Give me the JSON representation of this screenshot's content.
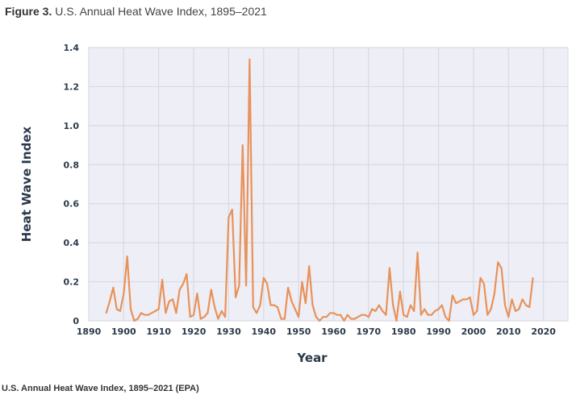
{
  "figure": {
    "label": "Figure 3.",
    "title": "U.S. Annual Heat Wave Index, 1895–2021",
    "caption": "U.S. Annual Heat Wave Index, 1895–2021 (EPA)"
  },
  "colors": {
    "line": "#e8925a",
    "plot_bg": "#eeeef6",
    "grid": "#d9d9e2",
    "text": "#2b3a4a"
  },
  "chart_data": {
    "type": "line",
    "title": "U.S. Annual Heat Wave Index, 1895–2021",
    "xlabel": "Year",
    "ylabel": "Heat Wave Index",
    "xlim": [
      1890,
      2027
    ],
    "ylim": [
      0,
      1.4
    ],
    "grid": true,
    "xticks": [
      "1890",
      "1900",
      "1910",
      "1920",
      "1930",
      "1940",
      "1950",
      "1960",
      "1970",
      "1980",
      "1990",
      "2000",
      "2010",
      "2020"
    ],
    "xtick_values": [
      1890,
      1900,
      1910,
      1920,
      1930,
      1940,
      1950,
      1960,
      1970,
      1980,
      1990,
      2000,
      2010,
      2020
    ],
    "yticks": [
      "0",
      "0.2",
      "0.4",
      "0.6",
      "0.8",
      "1.0",
      "1.2",
      "1.4"
    ],
    "ytick_values": [
      0,
      0.2,
      0.4,
      0.6,
      0.8,
      1.0,
      1.2,
      1.4
    ],
    "series": [
      {
        "name": "Heat Wave Index",
        "x_start": 1895,
        "values": [
          0.04,
          0.1,
          0.17,
          0.06,
          0.05,
          0.14,
          0.33,
          0.06,
          0.0,
          0.01,
          0.04,
          0.03,
          0.03,
          0.04,
          0.05,
          0.06,
          0.21,
          0.04,
          0.1,
          0.11,
          0.04,
          0.16,
          0.19,
          0.24,
          0.02,
          0.03,
          0.14,
          0.01,
          0.02,
          0.04,
          0.16,
          0.07,
          0.01,
          0.05,
          0.02,
          0.53,
          0.57,
          0.12,
          0.18,
          0.9,
          0.18,
          1.34,
          0.07,
          0.04,
          0.08,
          0.22,
          0.19,
          0.08,
          0.08,
          0.07,
          0.01,
          0.01,
          0.17,
          0.1,
          0.06,
          0.02,
          0.2,
          0.09,
          0.28,
          0.08,
          0.02,
          0.0,
          0.02,
          0.02,
          0.04,
          0.04,
          0.03,
          0.03,
          0.0,
          0.03,
          0.01,
          0.01,
          0.02,
          0.03,
          0.03,
          0.02,
          0.06,
          0.05,
          0.08,
          0.05,
          0.03,
          0.27,
          0.08,
          0.0,
          0.15,
          0.03,
          0.02,
          0.08,
          0.05,
          0.35,
          0.03,
          0.06,
          0.03,
          0.03,
          0.05,
          0.06,
          0.08,
          0.02,
          0.0,
          0.13,
          0.09,
          0.1,
          0.11,
          0.11,
          0.12,
          0.03,
          0.05,
          0.22,
          0.19,
          0.03,
          0.06,
          0.14,
          0.3,
          0.27,
          0.08,
          0.02,
          0.11,
          0.05,
          0.06,
          0.11,
          0.08,
          0.07,
          0.22
        ]
      }
    ]
  }
}
